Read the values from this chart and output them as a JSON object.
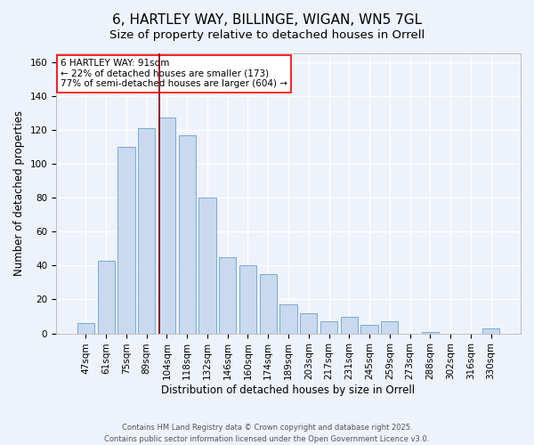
{
  "title": "6, HARTLEY WAY, BILLINGE, WIGAN, WN5 7GL",
  "subtitle": "Size of property relative to detached houses in Orrell",
  "xlabel": "Distribution of detached houses by size in Orrell",
  "ylabel": "Number of detached properties",
  "bar_color": "#c8d9f0",
  "bar_edge_color": "#7aabcf",
  "categories": [
    "47sqm",
    "61sqm",
    "75sqm",
    "89sqm",
    "104sqm",
    "118sqm",
    "132sqm",
    "146sqm",
    "160sqm",
    "174sqm",
    "189sqm",
    "203sqm",
    "217sqm",
    "231sqm",
    "245sqm",
    "259sqm",
    "273sqm",
    "288sqm",
    "302sqm",
    "316sqm",
    "330sqm"
  ],
  "values": [
    6,
    43,
    110,
    121,
    127,
    117,
    80,
    45,
    40,
    35,
    17,
    12,
    7,
    10,
    5,
    7,
    0,
    1,
    0,
    0,
    3
  ],
  "ylim": [
    0,
    165
  ],
  "yticks": [
    0,
    20,
    40,
    60,
    80,
    100,
    120,
    140,
    160
  ],
  "annotation_line1": "6 HARTLEY WAY: 91sqm",
  "annotation_line2": "← 22% of detached houses are smaller (173)",
  "annotation_line3": "77% of semi-detached houses are larger (604) →",
  "vline_x_index": 3.65,
  "footer_line1": "Contains HM Land Registry data © Crown copyright and database right 2025.",
  "footer_line2": "Contains public sector information licensed under the Open Government Licence v3.0.",
  "background_color": "#eef2fb",
  "grid_color": "#ffffff",
  "title_fontsize": 11,
  "subtitle_fontsize": 9.5,
  "axis_label_fontsize": 8.5,
  "tick_fontsize": 7.5,
  "annotation_fontsize": 7.5
}
